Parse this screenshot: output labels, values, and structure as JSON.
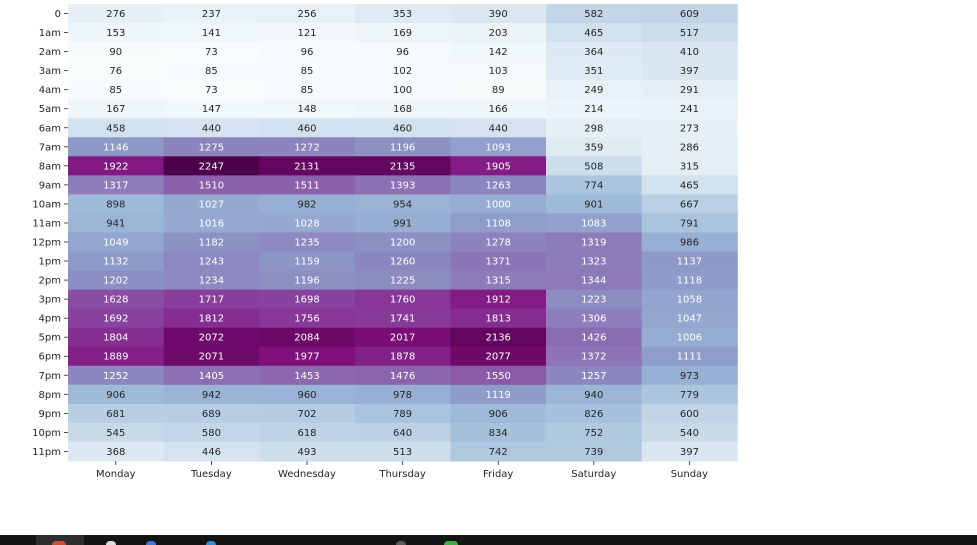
{
  "chart_data": {
    "type": "heatmap",
    "colormap": "BuPu",
    "x_categories": [
      "Monday",
      "Tuesday",
      "Wednesday",
      "Thursday",
      "Friday",
      "Saturday",
      "Sunday"
    ],
    "y_categories": [
      "0",
      "1am",
      "2am",
      "3am",
      "4am",
      "5am",
      "6am",
      "7am",
      "8am",
      "9am",
      "10am",
      "11am",
      "12pm",
      "1pm",
      "2pm",
      "3pm",
      "4pm",
      "5pm",
      "6pm",
      "7pm",
      "8pm",
      "9pm",
      "10pm",
      "11pm"
    ],
    "values": [
      [
        276,
        237,
        256,
        353,
        390,
        582,
        609
      ],
      [
        153,
        141,
        121,
        169,
        203,
        465,
        517
      ],
      [
        90,
        73,
        96,
        96,
        142,
        364,
        410
      ],
      [
        76,
        85,
        85,
        102,
        103,
        351,
        397
      ],
      [
        85,
        73,
        85,
        100,
        89,
        249,
        291
      ],
      [
        167,
        147,
        148,
        168,
        166,
        214,
        241
      ],
      [
        458,
        440,
        460,
        460,
        440,
        298,
        273
      ],
      [
        1146,
        1275,
        1272,
        1196,
        1093,
        359,
        286
      ],
      [
        1922,
        2247,
        2131,
        2135,
        1905,
        508,
        315
      ],
      [
        1317,
        1510,
        1511,
        1393,
        1263,
        774,
        465
      ],
      [
        898,
        1027,
        982,
        954,
        1000,
        901,
        667
      ],
      [
        941,
        1016,
        1028,
        991,
        1108,
        1083,
        791
      ],
      [
        1049,
        1182,
        1235,
        1200,
        1278,
        1319,
        986
      ],
      [
        1132,
        1243,
        1159,
        1260,
        1371,
        1323,
        1137
      ],
      [
        1202,
        1234,
        1196,
        1225,
        1315,
        1344,
        1118
      ],
      [
        1628,
        1717,
        1698,
        1760,
        1912,
        1223,
        1058
      ],
      [
        1692,
        1812,
        1756,
        1741,
        1813,
        1306,
        1047
      ],
      [
        1804,
        2072,
        2084,
        2017,
        2136,
        1426,
        1006
      ],
      [
        1889,
        2071,
        1977,
        1878,
        2077,
        1372,
        1111
      ],
      [
        1252,
        1405,
        1453,
        1476,
        1550,
        1257,
        973
      ],
      [
        906,
        942,
        960,
        978,
        1119,
        940,
        779
      ],
      [
        681,
        689,
        702,
        789,
        906,
        826,
        600
      ],
      [
        545,
        580,
        618,
        640,
        834,
        752,
        540
      ],
      [
        368,
        446,
        493,
        513,
        742,
        739,
        397
      ]
    ],
    "annotated": true,
    "legend": "none"
  },
  "colors": {
    "text_dark": "#262626",
    "text_light": "#ffffff",
    "taskbar": "#141414"
  }
}
